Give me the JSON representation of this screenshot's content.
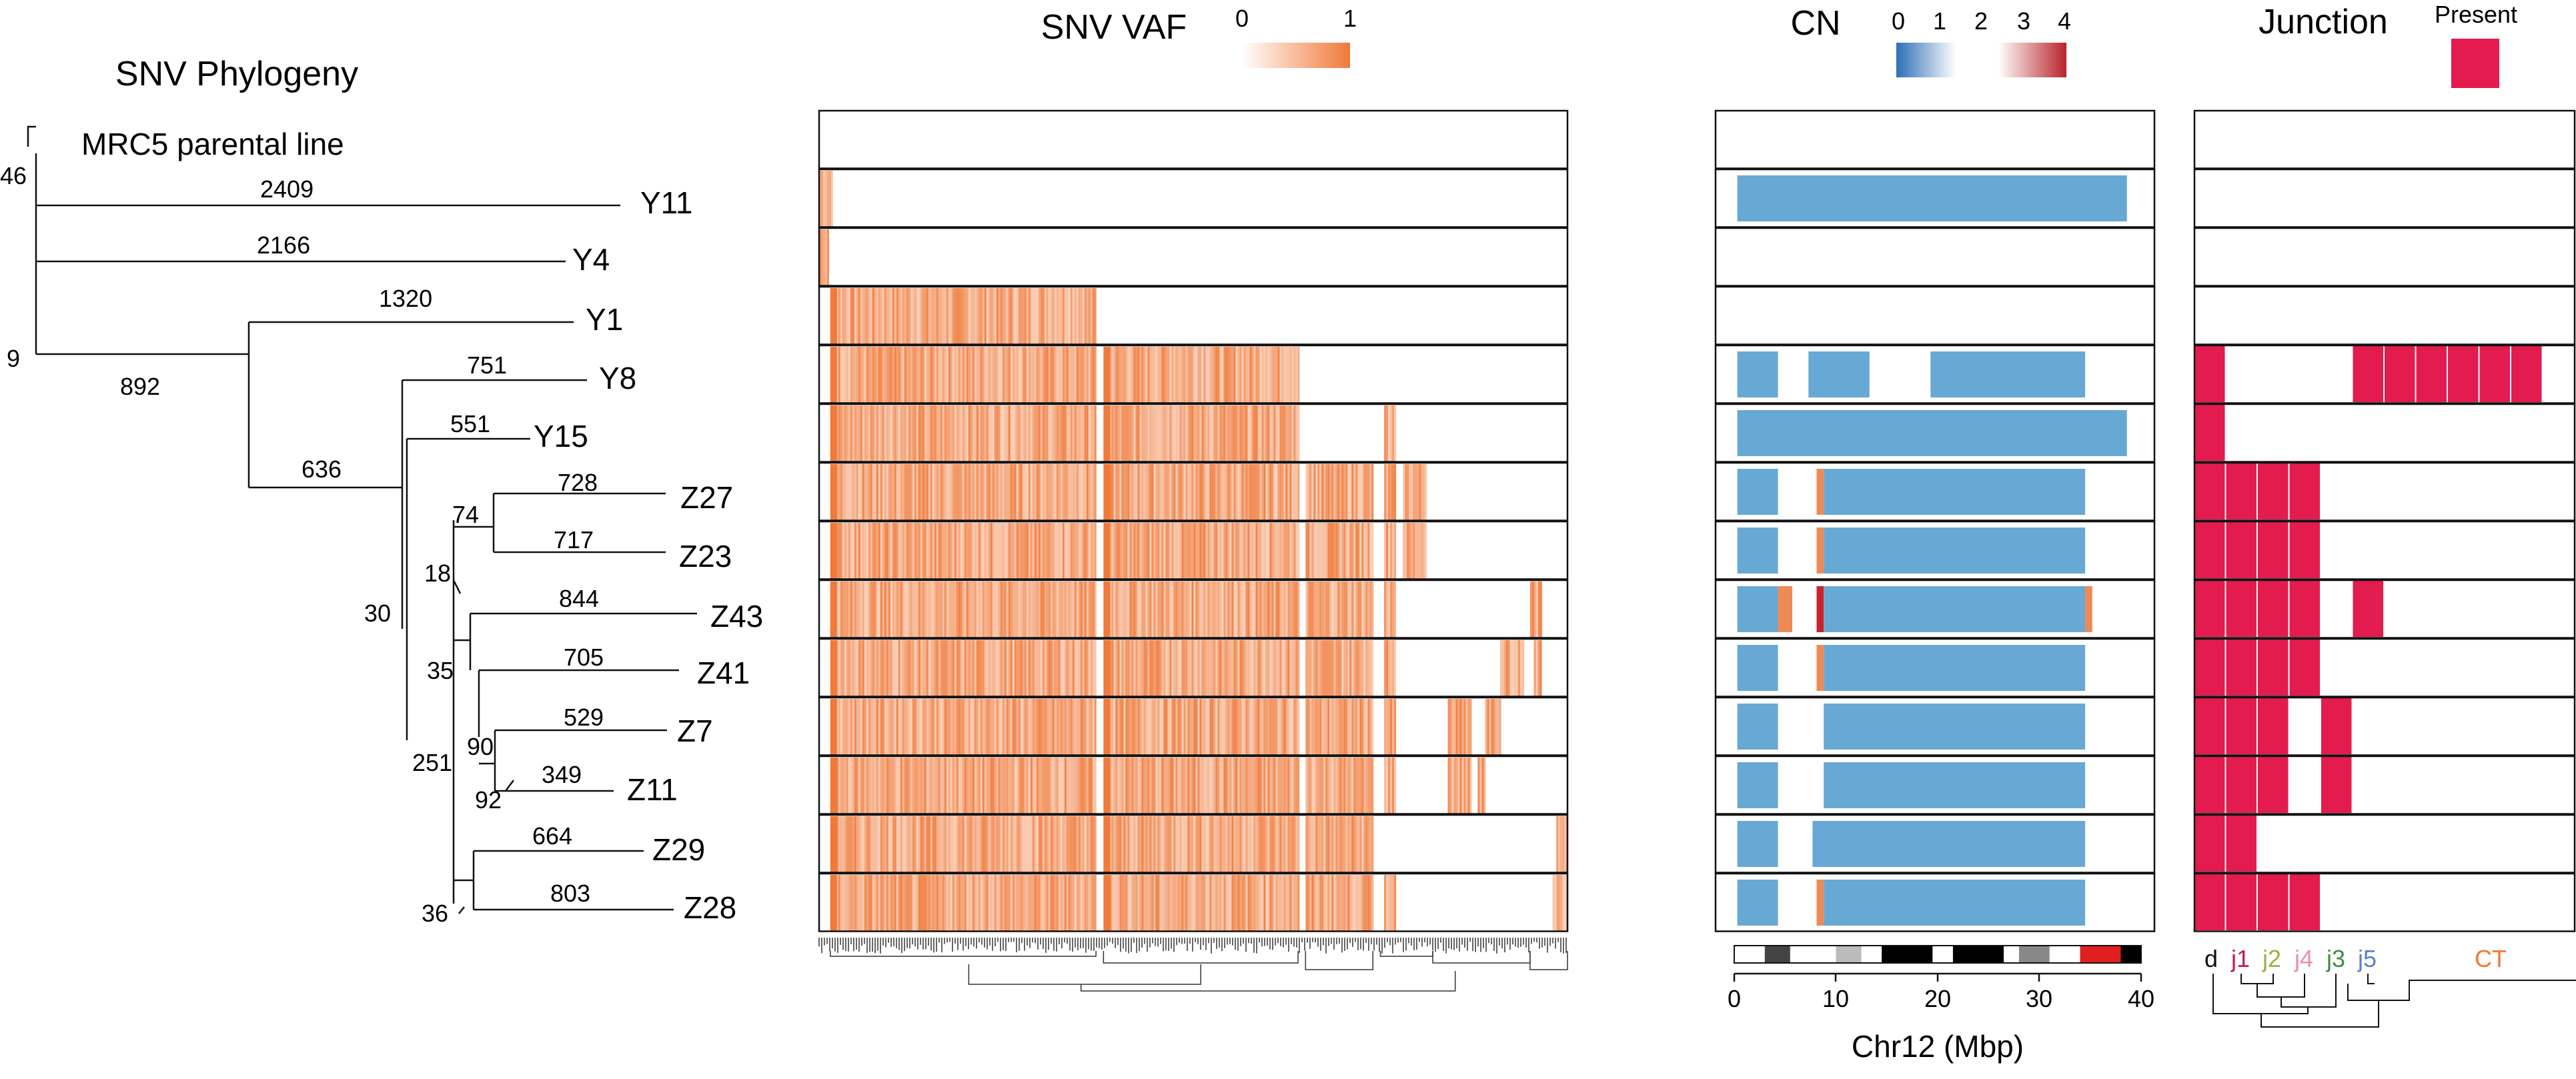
{
  "titles": {
    "phylogeny": "SNV Phylogeny",
    "vaf": "SNV VAF",
    "cn": "CN",
    "junction": "Junction"
  },
  "vaf_legend": {
    "ticks": [
      "0",
      "1"
    ],
    "color_low": "#ffffff",
    "color_high": "#f07a3a"
  },
  "cn_legend": {
    "ticks": [
      "0",
      "1",
      "2",
      "3",
      "4"
    ],
    "colors": [
      "#2c6fb5",
      "#ffffff",
      "#b8232b"
    ]
  },
  "junction_legend": {
    "label": "Present",
    "color": "#e31b4f"
  },
  "root_label": "MRC5 parental line",
  "samples": [
    "Y11",
    "Y4",
    "Y1",
    "Y8",
    "Y15",
    "Z27",
    "Z23",
    "Z43",
    "Z41",
    "Z7",
    "Z11",
    "Z29",
    "Z28"
  ],
  "branch_labels": [
    "46",
    "9",
    "2409",
    "2166",
    "1320",
    "892",
    "751",
    "551",
    "636",
    "728",
    "717",
    "74",
    "18",
    "844",
    "30",
    "35",
    "705",
    "529",
    "90",
    "349",
    "92",
    "251",
    "664",
    "803",
    "36"
  ],
  "cn_axis": {
    "label": "Chr12 (Mbp)",
    "ticks": [
      "0",
      "10",
      "20",
      "30",
      "40"
    ]
  },
  "junction_labels": [
    {
      "text": "d",
      "color": "#111111"
    },
    {
      "text": "j1",
      "color": "#c2185b"
    },
    {
      "text": "j2",
      "color": "#9ab04a"
    },
    {
      "text": "j4",
      "color": "#e58fb0"
    },
    {
      "text": "j3",
      "color": "#3f8f3f"
    },
    {
      "text": "j5",
      "color": "#5b7fd1"
    },
    {
      "text": "CT",
      "color": "#f07a2a"
    }
  ],
  "colors": {
    "vaf_orange": "#f07a3a",
    "cn_loss": "#67a9d4",
    "cn_gain": "#ee8a56",
    "cn_amp": "#c8232c",
    "junction": "#e31b4f"
  },
  "cn_rows": [
    [],
    [
      [
        0.3,
        38.6,
        "loss"
      ]
    ],
    [],
    [],
    [
      [
        0.3,
        4.3,
        "loss"
      ],
      [
        7.3,
        13.3,
        "loss"
      ],
      [
        19.3,
        34.5,
        "loss"
      ]
    ],
    [
      [
        0.3,
        38.6,
        "loss"
      ]
    ],
    [
      [
        0.3,
        4.3,
        "loss"
      ],
      [
        8.1,
        8.8,
        "gain"
      ],
      [
        8.8,
        34.5,
        "loss"
      ]
    ],
    [
      [
        0.3,
        4.3,
        "loss"
      ],
      [
        8.1,
        8.8,
        "gain"
      ],
      [
        8.8,
        34.5,
        "loss"
      ]
    ],
    [
      [
        0.3,
        4.3,
        "loss"
      ],
      [
        4.3,
        5.7,
        "gain"
      ],
      [
        8.1,
        8.8,
        "amp"
      ],
      [
        8.8,
        34.5,
        "loss"
      ],
      [
        34.5,
        35.2,
        "gain"
      ]
    ],
    [
      [
        0.3,
        4.3,
        "loss"
      ],
      [
        8.1,
        8.8,
        "gain"
      ],
      [
        8.8,
        34.5,
        "loss"
      ]
    ],
    [
      [
        0.3,
        4.3,
        "loss"
      ],
      [
        8.8,
        34.5,
        "loss"
      ]
    ],
    [
      [
        0.3,
        4.3,
        "loss"
      ],
      [
        8.8,
        34.5,
        "loss"
      ]
    ],
    [
      [
        0.3,
        4.3,
        "loss"
      ],
      [
        7.7,
        34.5,
        "loss"
      ]
    ],
    [
      [
        0.3,
        4.3,
        "loss"
      ],
      [
        8.1,
        8.8,
        "gain"
      ],
      [
        8.8,
        34.5,
        "loss"
      ]
    ]
  ],
  "junction_rows": [
    [],
    [],
    [],
    [],
    [
      [
        0,
        1
      ],
      [
        5,
        11
      ]
    ],
    [
      [
        0,
        1
      ]
    ],
    [
      [
        0,
        4
      ]
    ],
    [
      [
        0,
        4
      ]
    ],
    [
      [
        0,
        4
      ],
      [
        5,
        6
      ]
    ],
    [
      [
        0,
        4
      ]
    ],
    [
      [
        0,
        3
      ],
      [
        4,
        5
      ]
    ],
    [
      [
        0,
        3
      ],
      [
        4,
        5
      ]
    ],
    [
      [
        0,
        2
      ]
    ],
    [
      [
        0,
        4
      ]
    ]
  ],
  "vaf_rows": [
    [],
    [
      [
        0.0,
        0.018
      ]
    ],
    [
      [
        0.0,
        0.012
      ]
    ],
    [
      [
        0.015,
        0.37
      ]
    ],
    [
      [
        0.015,
        0.37
      ],
      [
        0.38,
        0.64
      ]
    ],
    [
      [
        0.015,
        0.37
      ],
      [
        0.38,
        0.64
      ],
      [
        0.755,
        0.77
      ]
    ],
    [
      [
        0.015,
        0.37
      ],
      [
        0.38,
        0.64
      ],
      [
        0.65,
        0.74
      ],
      [
        0.755,
        0.77
      ],
      [
        0.78,
        0.81
      ]
    ],
    [
      [
        0.015,
        0.37
      ],
      [
        0.38,
        0.64
      ],
      [
        0.65,
        0.74
      ],
      [
        0.755,
        0.77
      ],
      [
        0.78,
        0.81
      ]
    ],
    [
      [
        0.015,
        0.37
      ],
      [
        0.38,
        0.64
      ],
      [
        0.65,
        0.74
      ],
      [
        0.755,
        0.77
      ],
      [
        0.95,
        0.965
      ]
    ],
    [
      [
        0.015,
        0.37
      ],
      [
        0.38,
        0.64
      ],
      [
        0.65,
        0.74
      ],
      [
        0.755,
        0.77
      ],
      [
        0.91,
        0.94
      ],
      [
        0.955,
        0.965
      ]
    ],
    [
      [
        0.015,
        0.37
      ],
      [
        0.38,
        0.64
      ],
      [
        0.65,
        0.74
      ],
      [
        0.755,
        0.77
      ],
      [
        0.84,
        0.87
      ],
      [
        0.89,
        0.91
      ]
    ],
    [
      [
        0.015,
        0.37
      ],
      [
        0.38,
        0.64
      ],
      [
        0.65,
        0.74
      ],
      [
        0.755,
        0.77
      ],
      [
        0.84,
        0.87
      ],
      [
        0.88,
        0.89
      ]
    ],
    [
      [
        0.015,
        0.37
      ],
      [
        0.38,
        0.64
      ],
      [
        0.65,
        0.74
      ],
      [
        0.985,
        1.0
      ]
    ],
    [
      [
        0.015,
        0.37
      ],
      [
        0.38,
        0.64
      ],
      [
        0.65,
        0.74
      ],
      [
        0.755,
        0.77
      ],
      [
        0.98,
        1.0
      ]
    ]
  ]
}
